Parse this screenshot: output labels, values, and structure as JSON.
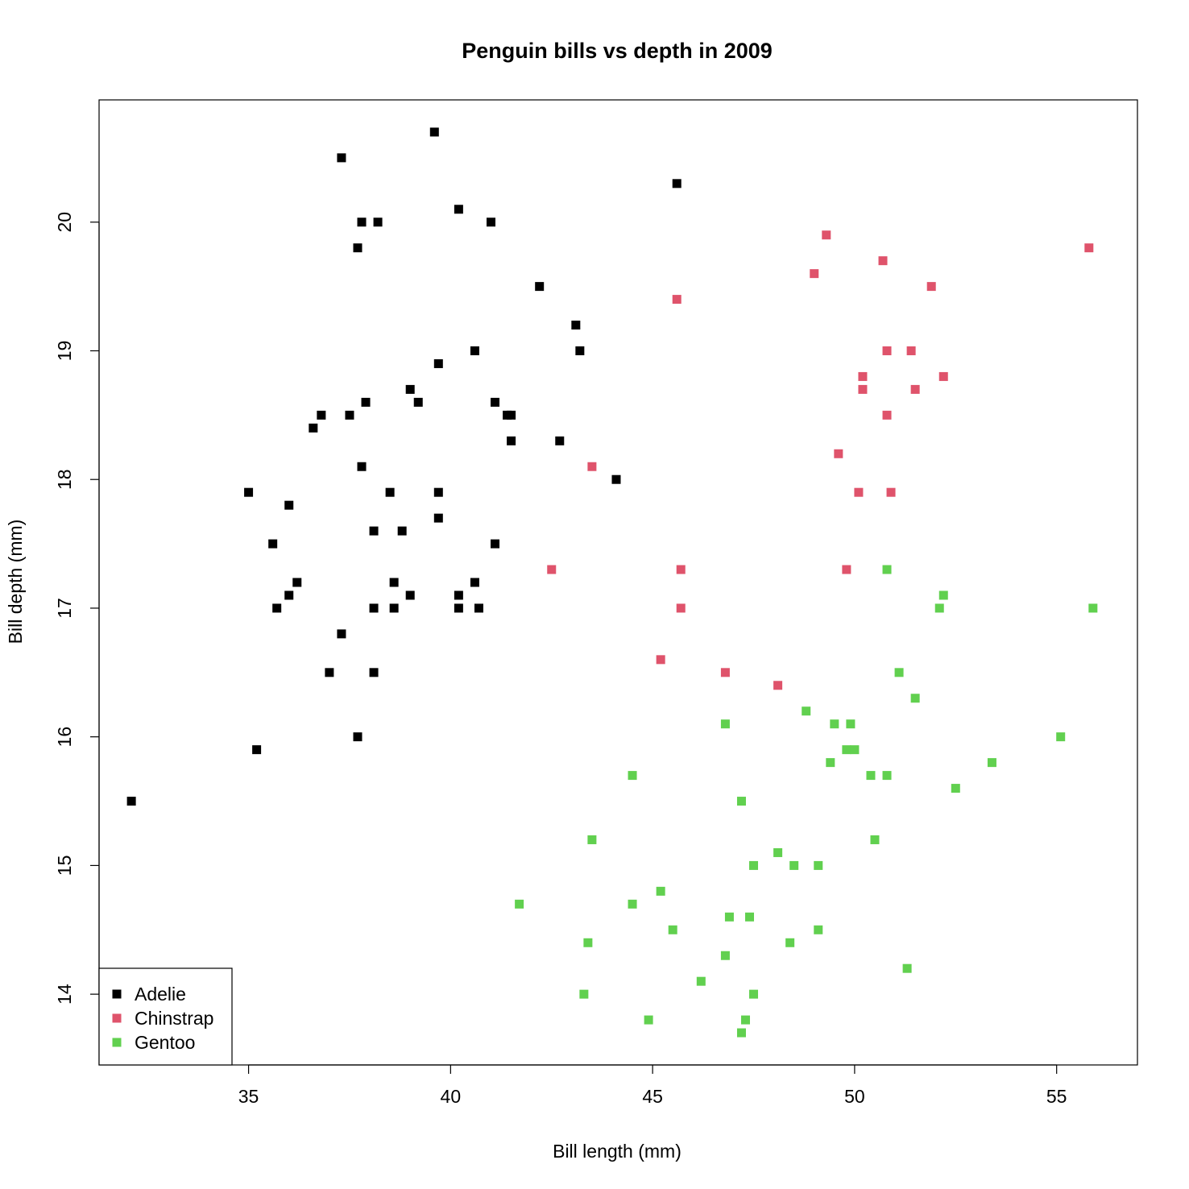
{
  "chart_data": {
    "type": "scatter",
    "title": "Penguin bills vs depth in 2009",
    "xlabel": "Bill length (mm)",
    "ylabel": "Bill depth (mm)",
    "xlim": [
      31.3,
      57.0
    ],
    "ylim": [
      13.45,
      20.95
    ],
    "x_ticks": [
      35,
      40,
      45,
      50,
      55
    ],
    "y_ticks": [
      14,
      15,
      16,
      17,
      18,
      19,
      20
    ],
    "grid": false,
    "legend_position": "bottom-left",
    "series": [
      {
        "name": "Adelie",
        "color": "#000000",
        "points": [
          [
            39.6,
            20.7
          ],
          [
            37.3,
            20.5
          ],
          [
            45.6,
            20.3
          ],
          [
            40.2,
            20.1
          ],
          [
            37.8,
            20.0
          ],
          [
            38.2,
            20.0
          ],
          [
            41.0,
            20.0
          ],
          [
            37.7,
            19.8
          ],
          [
            42.2,
            19.5
          ],
          [
            43.1,
            19.2
          ],
          [
            40.6,
            19.0
          ],
          [
            43.2,
            19.0
          ],
          [
            39.7,
            18.9
          ],
          [
            39.0,
            18.7
          ],
          [
            37.9,
            18.6
          ],
          [
            39.2,
            18.6
          ],
          [
            41.1,
            18.6
          ],
          [
            36.8,
            18.5
          ],
          [
            37.5,
            18.5
          ],
          [
            41.4,
            18.5
          ],
          [
            41.5,
            18.5
          ],
          [
            36.6,
            18.4
          ],
          [
            41.5,
            18.3
          ],
          [
            42.7,
            18.3
          ],
          [
            37.8,
            18.1
          ],
          [
            44.1,
            18.0
          ],
          [
            35.0,
            17.9
          ],
          [
            38.5,
            17.9
          ],
          [
            39.7,
            17.9
          ],
          [
            36.0,
            17.8
          ],
          [
            39.7,
            17.7
          ],
          [
            38.1,
            17.6
          ],
          [
            38.8,
            17.6
          ],
          [
            35.6,
            17.5
          ],
          [
            41.1,
            17.5
          ],
          [
            36.2,
            17.2
          ],
          [
            38.6,
            17.2
          ],
          [
            40.6,
            17.2
          ],
          [
            36.0,
            17.1
          ],
          [
            39.0,
            17.1
          ],
          [
            40.2,
            17.1
          ],
          [
            35.7,
            17.0
          ],
          [
            38.1,
            17.0
          ],
          [
            38.6,
            17.0
          ],
          [
            40.2,
            17.0
          ],
          [
            40.7,
            17.0
          ],
          [
            37.3,
            16.8
          ],
          [
            37.0,
            16.5
          ],
          [
            38.1,
            16.5
          ],
          [
            37.7,
            16.0
          ],
          [
            35.2,
            15.9
          ],
          [
            32.1,
            15.5
          ]
        ]
      },
      {
        "name": "Chinstrap",
        "color": "#df536b",
        "points": [
          [
            49.3,
            19.9
          ],
          [
            55.8,
            19.8
          ],
          [
            50.7,
            19.7
          ],
          [
            49.0,
            19.6
          ],
          [
            51.9,
            19.5
          ],
          [
            45.6,
            19.4
          ],
          [
            50.8,
            19.0
          ],
          [
            51.4,
            19.0
          ],
          [
            50.2,
            18.8
          ],
          [
            52.2,
            18.8
          ],
          [
            50.2,
            18.7
          ],
          [
            51.5,
            18.7
          ],
          [
            50.8,
            18.5
          ],
          [
            49.6,
            18.2
          ],
          [
            43.5,
            18.1
          ],
          [
            50.1,
            17.9
          ],
          [
            50.9,
            17.9
          ],
          [
            42.5,
            17.3
          ],
          [
            45.7,
            17.3
          ],
          [
            49.8,
            17.3
          ],
          [
            45.7,
            17.0
          ],
          [
            45.2,
            16.6
          ],
          [
            46.8,
            16.5
          ],
          [
            48.1,
            16.4
          ]
        ]
      },
      {
        "name": "Gentoo",
        "color": "#61d04f",
        "points": [
          [
            50.8,
            17.3
          ],
          [
            52.2,
            17.1
          ],
          [
            52.1,
            17.0
          ],
          [
            55.9,
            17.0
          ],
          [
            51.1,
            16.5
          ],
          [
            51.5,
            16.3
          ],
          [
            48.8,
            16.2
          ],
          [
            46.8,
            16.1
          ],
          [
            49.5,
            16.1
          ],
          [
            49.9,
            16.1
          ],
          [
            55.1,
            16.0
          ],
          [
            49.8,
            15.9
          ],
          [
            50.0,
            15.9
          ],
          [
            49.4,
            15.8
          ],
          [
            53.4,
            15.8
          ],
          [
            44.5,
            15.7
          ],
          [
            50.4,
            15.7
          ],
          [
            50.8,
            15.7
          ],
          [
            52.5,
            15.6
          ],
          [
            47.2,
            15.5
          ],
          [
            43.5,
            15.2
          ],
          [
            50.5,
            15.2
          ],
          [
            48.1,
            15.1
          ],
          [
            47.5,
            15.0
          ],
          [
            48.5,
            15.0
          ],
          [
            49.1,
            15.0
          ],
          [
            45.2,
            14.8
          ],
          [
            41.7,
            14.7
          ],
          [
            44.5,
            14.7
          ],
          [
            46.9,
            14.6
          ],
          [
            47.4,
            14.6
          ],
          [
            45.5,
            14.5
          ],
          [
            49.1,
            14.5
          ],
          [
            43.4,
            14.4
          ],
          [
            48.4,
            14.4
          ],
          [
            46.8,
            14.3
          ],
          [
            51.3,
            14.2
          ],
          [
            46.2,
            14.1
          ],
          [
            43.3,
            14.0
          ],
          [
            47.5,
            14.0
          ],
          [
            44.9,
            13.8
          ],
          [
            47.3,
            13.8
          ],
          [
            47.2,
            13.7
          ]
        ]
      }
    ]
  }
}
